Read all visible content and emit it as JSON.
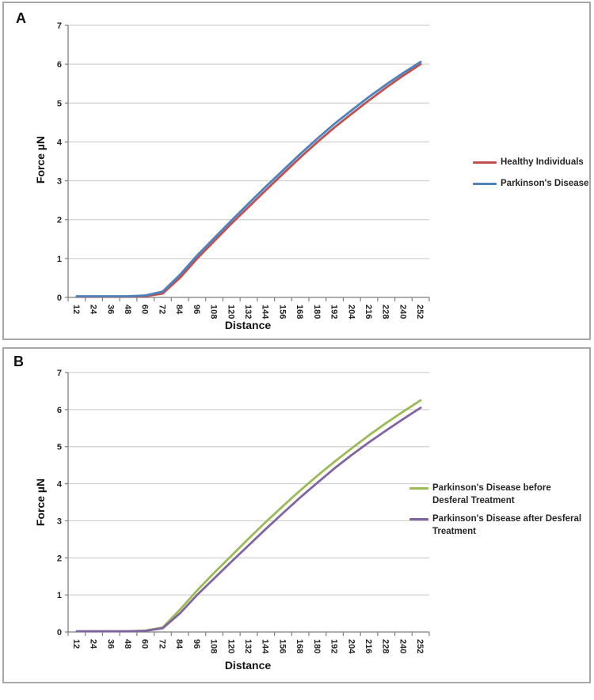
{
  "panels": [
    {
      "label": "A",
      "y_axis_title": "Force µN",
      "x_axis_title": "Distance"
    },
    {
      "label": "B",
      "y_axis_title": "Force µN",
      "x_axis_title": "Distance"
    }
  ],
  "colors": {
    "grid": "#c6c6c6",
    "axis": "#7f7f7f",
    "tick_text": "#262626",
    "panel_border": "#a8a8a8",
    "red": "#C0504D",
    "blue": "#4F81BD",
    "green": "#9BBB59",
    "purple": "#8064A2"
  },
  "chart_data": [
    {
      "type": "line",
      "panel": "A",
      "xlabel": "Distance",
      "ylabel": "Force µN",
      "ylim": [
        0,
        7
      ],
      "y_ticks": [
        0,
        1,
        2,
        3,
        4,
        5,
        6,
        7
      ],
      "grid": "horizontal",
      "legend_position": "right",
      "categories": [
        12,
        24,
        36,
        48,
        60,
        72,
        84,
        96,
        108,
        120,
        132,
        144,
        156,
        168,
        180,
        192,
        204,
        216,
        228,
        240,
        252
      ],
      "series": [
        {
          "name": "Healthy Individuals",
          "color": "#C0504D",
          "values": [
            0.02,
            0.02,
            0.02,
            0.02,
            0.03,
            0.1,
            0.5,
            1.0,
            1.45,
            1.9,
            2.33,
            2.76,
            3.18,
            3.6,
            4.0,
            4.38,
            4.73,
            5.07,
            5.4,
            5.71,
            6.0
          ]
        },
        {
          "name": "Parkinson's Disease",
          "color": "#4F81BD",
          "values": [
            0.03,
            0.03,
            0.03,
            0.03,
            0.05,
            0.15,
            0.58,
            1.08,
            1.53,
            1.98,
            2.42,
            2.85,
            3.27,
            3.69,
            4.09,
            4.47,
            4.82,
            5.16,
            5.48,
            5.78,
            6.06
          ]
        }
      ]
    },
    {
      "type": "line",
      "panel": "B",
      "xlabel": "Distance",
      "ylabel": "Force µN",
      "ylim": [
        0,
        7
      ],
      "y_ticks": [
        0,
        1,
        2,
        3,
        4,
        5,
        6,
        7
      ],
      "grid": "horizontal",
      "legend_position": "right",
      "categories": [
        12,
        24,
        36,
        48,
        60,
        72,
        84,
        96,
        108,
        120,
        132,
        144,
        156,
        168,
        180,
        192,
        204,
        216,
        228,
        240,
        252
      ],
      "series": [
        {
          "name": "Parkinson's Disease before Desferal Treatment",
          "color": "#9BBB59",
          "values": [
            0.02,
            0.02,
            0.02,
            0.02,
            0.04,
            0.12,
            0.6,
            1.12,
            1.6,
            2.06,
            2.52,
            2.97,
            3.4,
            3.82,
            4.22,
            4.6,
            4.96,
            5.31,
            5.64,
            5.95,
            6.25
          ]
        },
        {
          "name": "Parkinson's Disease after Desferal Treatment",
          "color": "#8064A2",
          "values": [
            0.02,
            0.02,
            0.02,
            0.02,
            0.03,
            0.1,
            0.5,
            1.0,
            1.45,
            1.9,
            2.34,
            2.78,
            3.21,
            3.63,
            4.03,
            4.42,
            4.78,
            5.12,
            5.44,
            5.75,
            6.05
          ]
        }
      ]
    }
  ]
}
